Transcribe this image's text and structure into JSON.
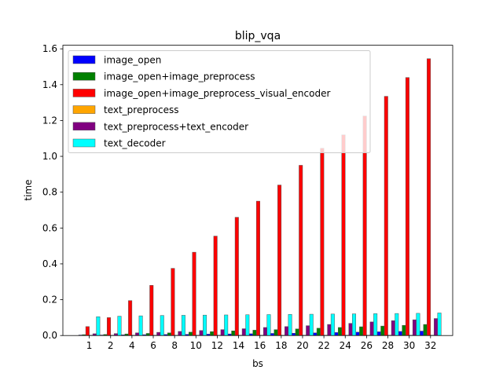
{
  "chart_data": {
    "type": "bar",
    "title": "blip_vqa",
    "xlabel": "bs",
    "ylabel": "time",
    "categories": [
      "1",
      "2",
      "4",
      "6",
      "8",
      "10",
      "12",
      "14",
      "16",
      "18",
      "20",
      "22",
      "24",
      "26",
      "28",
      "30",
      "32"
    ],
    "ylim": [
      0,
      1.62
    ],
    "yticks": [
      "0.0",
      "0.2",
      "0.4",
      "0.6",
      "0.8",
      "1.0",
      "1.2",
      "1.4",
      "1.6"
    ],
    "grid": false,
    "legend_position": "upper-left",
    "series": [
      {
        "name": "image_open",
        "color": "#0000ff",
        "values": [
          0.003,
          0.003,
          0.004,
          0.005,
          0.006,
          0.007,
          0.008,
          0.009,
          0.01,
          0.012,
          0.013,
          0.015,
          0.017,
          0.019,
          0.021,
          0.023,
          0.025
        ]
      },
      {
        "name": "image_open+image_preprocess",
        "color": "#008000",
        "values": [
          0.005,
          0.006,
          0.009,
          0.012,
          0.015,
          0.019,
          0.022,
          0.026,
          0.03,
          0.033,
          0.037,
          0.041,
          0.045,
          0.049,
          0.053,
          0.057,
          0.062
        ]
      },
      {
        "name": "image_open+image_preprocess_visual_encoder",
        "color": "#ff0000",
        "values": [
          0.05,
          0.1,
          0.195,
          0.28,
          0.375,
          0.465,
          0.555,
          0.66,
          0.75,
          0.84,
          0.95,
          1.045,
          1.12,
          1.225,
          1.335,
          1.44,
          1.545
        ]
      },
      {
        "name": "text_preprocess",
        "color": "#ffa500",
        "values": [
          0.002,
          0.002,
          0.002,
          0.002,
          0.002,
          0.002,
          0.002,
          0.002,
          0.002,
          0.002,
          0.002,
          0.002,
          0.002,
          0.002,
          0.002,
          0.002,
          0.002
        ]
      },
      {
        "name": "text_preprocess+text_encoder",
        "color": "#800080",
        "values": [
          0.01,
          0.011,
          0.015,
          0.018,
          0.023,
          0.028,
          0.033,
          0.038,
          0.045,
          0.05,
          0.055,
          0.062,
          0.068,
          0.076,
          0.083,
          0.088,
          0.095
        ]
      },
      {
        "name": "text_decoder",
        "color": "#00ffff",
        "values": [
          0.105,
          0.108,
          0.11,
          0.112,
          0.113,
          0.114,
          0.115,
          0.116,
          0.117,
          0.118,
          0.119,
          0.12,
          0.121,
          0.122,
          0.123,
          0.124,
          0.126
        ]
      }
    ]
  }
}
